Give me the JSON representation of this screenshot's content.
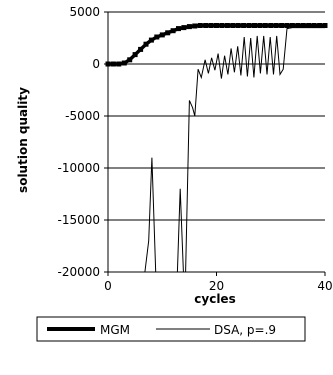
{
  "chart_data": {
    "type": "line",
    "title": "",
    "xlabel": "cycles",
    "ylabel": "solution quality",
    "xlim": [
      0,
      40
    ],
    "ylim": [
      -20000,
      5000
    ],
    "xticks": [
      0,
      20,
      40
    ],
    "yticks": [
      5000,
      0,
      -5000,
      -10000,
      -15000,
      -20000
    ],
    "x_tick_labels": [
      "0",
      "20",
      "40"
    ],
    "y_tick_labels": [
      "5000",
      "0",
      "-5000",
      "-10000",
      "-15000",
      "-20000"
    ],
    "grid": "horizontal",
    "legend": "bottom",
    "series": [
      {
        "name": "MGM",
        "color": "#000000",
        "style": "thick-dotted",
        "x": [
          0,
          1,
          2,
          3,
          4,
          5,
          6,
          7,
          8,
          9,
          10,
          11,
          12,
          13,
          14,
          15,
          16,
          17,
          18,
          19,
          20,
          21,
          22,
          23,
          24,
          25,
          26,
          27,
          28,
          29,
          30,
          31,
          32,
          33,
          34,
          35,
          36,
          37,
          38,
          39,
          40
        ],
        "y": [
          0,
          0,
          0,
          100,
          400,
          900,
          1400,
          1900,
          2300,
          2600,
          2800,
          3000,
          3200,
          3400,
          3500,
          3600,
          3650,
          3700,
          3700,
          3700,
          3700,
          3700,
          3700,
          3700,
          3700,
          3700,
          3700,
          3700,
          3700,
          3700,
          3700,
          3700,
          3700,
          3700,
          3700,
          3700,
          3700,
          3700,
          3700,
          3700,
          3700
        ]
      },
      {
        "name": "DSA, p=.9",
        "color": "#000000",
        "style": "thin",
        "x": [
          6.8,
          7.5,
          8.1,
          8.8,
          9.0,
          12.8,
          13.3,
          13.9,
          14.3,
          15.0,
          15.6,
          16.0,
          16.6,
          17.2,
          17.9,
          18.5,
          19.1,
          19.7,
          20.3,
          20.9,
          21.5,
          22.1,
          22.7,
          23.3,
          23.9,
          24.5,
          25.1,
          25.7,
          26.3,
          26.9,
          27.5,
          28.1,
          28.7,
          29.3,
          29.9,
          30.5,
          31.1,
          31.7,
          32.3,
          33.0,
          34.0,
          40.0
        ],
        "y": [
          -20000,
          -17000,
          -9000,
          -20000,
          -20000,
          -20000,
          -12000,
          -20000,
          -20000,
          -3500,
          -4200,
          -5000,
          -500,
          -1300,
          400,
          -900,
          600,
          -600,
          1000,
          -1400,
          800,
          -1000,
          1500,
          -800,
          1700,
          -1100,
          2600,
          -1200,
          2500,
          -1300,
          2700,
          -900,
          2700,
          -1000,
          2600,
          -1000,
          2700,
          -1000,
          -500,
          3400,
          3500,
          3500
        ]
      }
    ]
  }
}
